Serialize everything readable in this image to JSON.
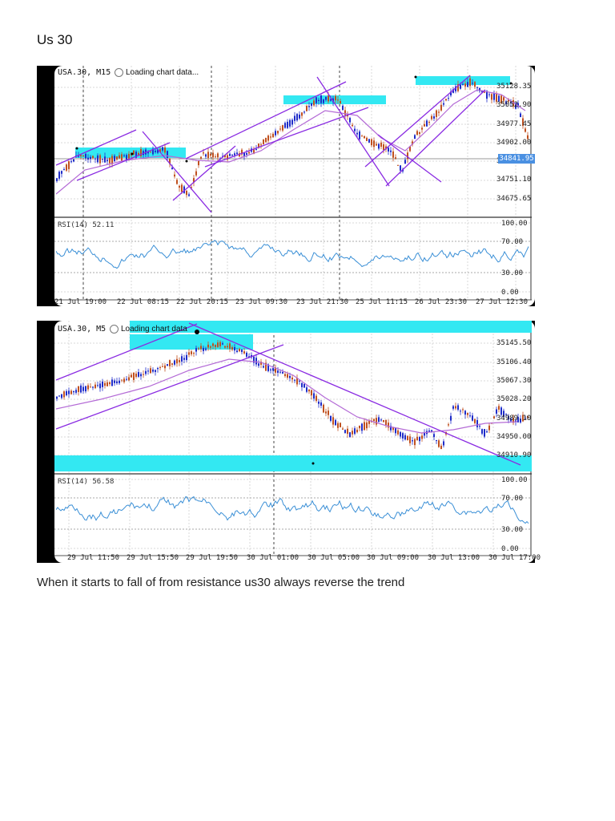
{
  "page": {
    "title": "Us 30",
    "caption": "When it starts to fall of from resistance us30 always reverse the trend"
  },
  "colors": {
    "bull": "#1f2cc9",
    "bear": "#c0501f",
    "zone": "#33e8f2",
    "trendline": "#8a2be2",
    "ma": "#b46bd6",
    "rsi": "#3a8fd6",
    "price_tag": "#4a90e2"
  },
  "charts": [
    {
      "symbol_label": "USA.30, M15",
      "loading_text": "Loading chart data...",
      "price_labels": [
        "35128.35",
        "35052.90",
        "34977.45",
        "34902.00",
        "34826.55",
        "34751.10",
        "34675.65"
      ],
      "current_price": "34841.95",
      "rsi_label": "RSI(14) 52.11",
      "rsi_levels": [
        "100.00",
        "70.00",
        "30.00",
        "0.00"
      ],
      "time_labels": [
        "21 Jul 19:00",
        "22 Jul 08:15",
        "22 Jul 20:15",
        "23 Jul 09:30",
        "23 Jul 21:30",
        "25 Jul 11:15",
        "26 Jul 23:30",
        "27 Jul 12:30"
      ]
    },
    {
      "symbol_label": "USA.30, M5",
      "loading_text": "Loading chart data",
      "price_labels": [
        "35145.50",
        "35106.40",
        "35067.30",
        "35028.20",
        "34989.10",
        "34950.00",
        "34910.90"
      ],
      "rsi_label": "RSI(14) 56.58",
      "rsi_levels": [
        "100.00",
        "70.00",
        "30.00",
        "0.00"
      ],
      "time_labels": [
        "29 Jul 11:50",
        "29 Jul 15:50",
        "29 Jul 19:50",
        "30 Jul 01:00",
        "30 Jul 05:00",
        "30 Jul 09:00",
        "30 Jul 13:00",
        "30 Jul 17:00"
      ]
    }
  ]
}
